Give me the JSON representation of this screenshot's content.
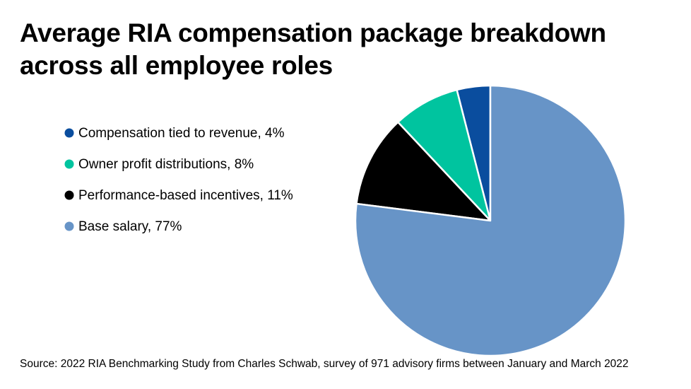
{
  "chart_data": {
    "type": "pie",
    "title": "Average RIA compensation package breakdown across all employee roles",
    "categories": [
      "Compensation tied to revenue, 4%",
      "Owner profit distributions, 8%",
      "Performance-based incentives, 11%",
      "Base salary, 77%"
    ],
    "values": [
      4,
      8,
      11,
      77
    ],
    "colors": [
      "#0a4d9e",
      "#00c49f",
      "#000000",
      "#6794c7"
    ],
    "source": "Source: 2022 RIA Benchmarking Study from Charles Schwab, survey of 971 advisory firms between January and March 2022"
  }
}
